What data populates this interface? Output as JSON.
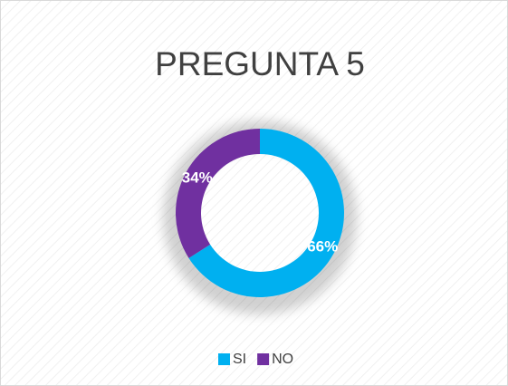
{
  "chart_data": {
    "type": "donut",
    "title": "PREGUNTA 5",
    "categories": [
      "SI",
      "NO"
    ],
    "values": [
      66,
      34
    ],
    "value_labels": [
      "66%",
      "34%"
    ],
    "colors": [
      "#00b0f0",
      "#7030a0"
    ],
    "legend": "bottom"
  }
}
